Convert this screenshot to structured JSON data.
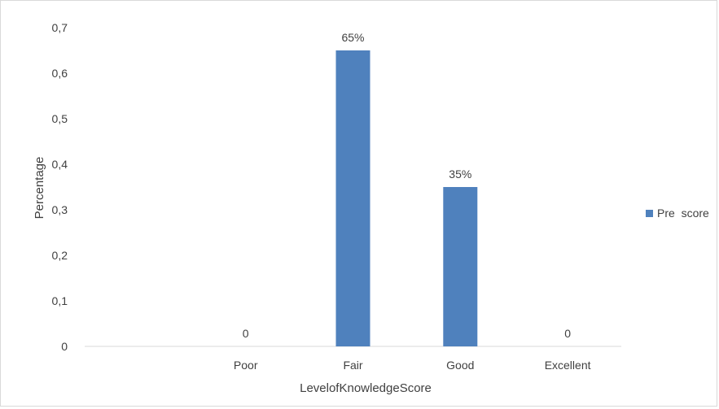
{
  "chart_data": {
    "type": "bar",
    "categories": [
      "",
      "Poor",
      "Fair",
      "Good",
      "Excellent"
    ],
    "series": [
      {
        "name": "Pre  score",
        "values": [
          null,
          0,
          0.65,
          0.35,
          0
        ],
        "color": "#4f81bd"
      }
    ],
    "data_labels": [
      "",
      "0",
      "65%",
      "35%",
      "0"
    ],
    "xlabel": "LevelofKnowledgeScore",
    "ylabel": "Percentage",
    "ylim": [
      0,
      0.7
    ],
    "yticks": [
      "0",
      "0,1",
      "0,2",
      "0,3",
      "0,4",
      "0,5",
      "0,6",
      "0,7"
    ],
    "grid": false,
    "legend": "right"
  }
}
